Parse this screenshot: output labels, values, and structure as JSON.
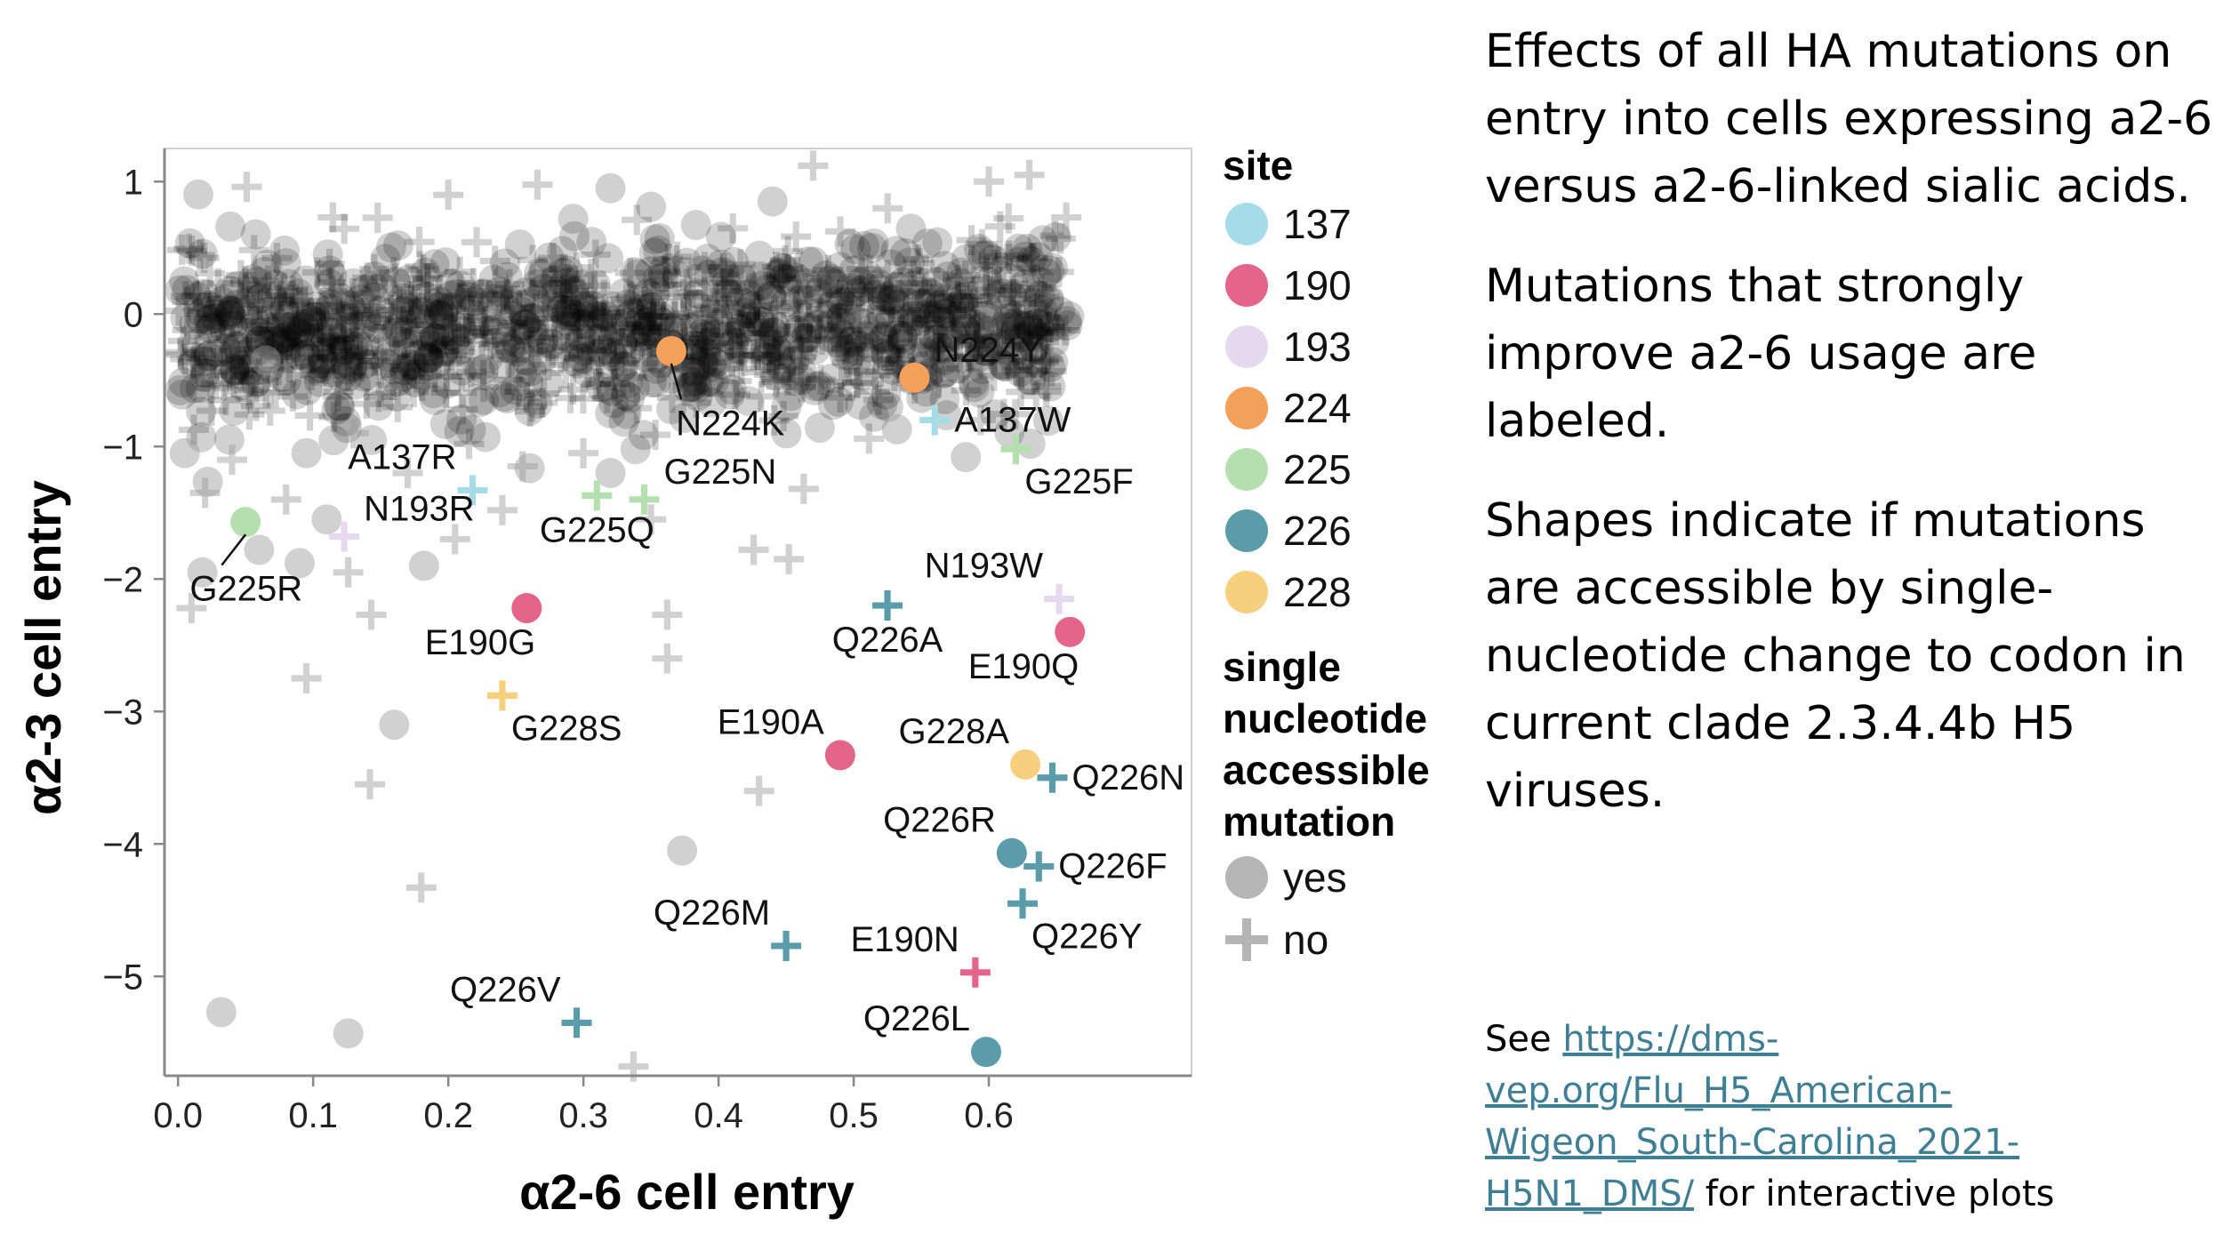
{
  "side_text": {
    "p1": "Effects of all HA mutations on entry into cells expressing a2-6 versus a2-6-linked sialic acids.",
    "p2": "Mutations that strongly improve a2-6 usage are labeled.",
    "p3": "Shapes indicate if mutations are accessible by single-nucleotide change to codon in current clade 2.3.4.4b H5 viruses."
  },
  "see_note": {
    "prefix": "See ",
    "link": "https://dms-vep.org/Flu_H5_American-Wigeon_South-Carolina_2021-H5N1_DMS/",
    "suffix": " for interactive plots"
  },
  "chart_data": {
    "type": "scatter",
    "xlabel": "α2-6 cell entry",
    "ylabel": "α2-3 cell entry",
    "xlim": [
      -0.01,
      0.75
    ],
    "ylim": [
      -5.75,
      1.25
    ],
    "x_ticks": [
      0.0,
      0.1,
      0.2,
      0.3,
      0.4,
      0.5,
      0.6
    ],
    "y_ticks": [
      1,
      0,
      -1,
      -2,
      -3,
      -4,
      -5
    ],
    "x_tick_labels": [
      "0.0",
      "0.1",
      "0.2",
      "0.3",
      "0.4",
      "0.5",
      "0.6"
    ],
    "y_tick_labels": [
      "1",
      "0",
      "−1",
      "−2",
      "−3",
      "−4",
      "−5"
    ],
    "legend": {
      "site_title": "site",
      "sites": [
        {
          "label": "137",
          "color": "#a6dbe8"
        },
        {
          "label": "190",
          "color": "#e4648a"
        },
        {
          "label": "193",
          "color": "#e6d8ee"
        },
        {
          "label": "224",
          "color": "#f4a05a"
        },
        {
          "label": "225",
          "color": "#b6dfb0"
        },
        {
          "label": "226",
          "color": "#5a9ca9"
        },
        {
          "label": "228",
          "color": "#f8cf7c"
        }
      ],
      "shape_title": [
        "single",
        "nucleotide",
        "accessible",
        "mutation"
      ],
      "shapes": [
        {
          "label": "yes",
          "shape": "circle",
          "color": "#b5b5b5"
        },
        {
          "label": "no",
          "shape": "cross",
          "color": "#b5b5b5"
        }
      ]
    },
    "labeled_points": [
      {
        "label": "N224K",
        "x": 0.365,
        "y": -0.28,
        "site": "224",
        "shape": "circle",
        "anchor": "leader",
        "lx": 0.375,
        "ly": -0.9
      },
      {
        "label": "N224Y",
        "x": 0.545,
        "y": -0.48,
        "site": "224",
        "shape": "circle",
        "anchor": "above-right"
      },
      {
        "label": "A137W",
        "x": 0.56,
        "y": -0.8,
        "site": "137",
        "shape": "cross",
        "anchor": "right"
      },
      {
        "label": "G225F",
        "x": 0.62,
        "y": -1.02,
        "site": "225",
        "shape": "cross",
        "anchor": "below-right"
      },
      {
        "label": "A137R",
        "x": 0.218,
        "y": -1.33,
        "site": "137",
        "shape": "cross",
        "anchor": "above-left"
      },
      {
        "label": "N193R",
        "x": 0.123,
        "y": -1.68,
        "site": "193",
        "shape": "cross",
        "anchor": "above-right"
      },
      {
        "label": "G225Q",
        "x": 0.31,
        "y": -1.37,
        "site": "225",
        "shape": "cross",
        "anchor": "below"
      },
      {
        "label": "G225N",
        "x": 0.345,
        "y": -1.4,
        "site": "225",
        "shape": "cross",
        "anchor": "above-right"
      },
      {
        "label": "G225R",
        "x": 0.05,
        "y": -1.57,
        "site": "225",
        "shape": "circle",
        "anchor": "leader",
        "lx": 0.035,
        "ly": -2.15
      },
      {
        "label": "N193W",
        "x": 0.652,
        "y": -2.15,
        "site": "193",
        "shape": "cross",
        "anchor": "above-left"
      },
      {
        "label": "E190Q",
        "x": 0.66,
        "y": -2.4,
        "site": "190",
        "shape": "circle",
        "anchor": "below-left"
      },
      {
        "label": "Q226A",
        "x": 0.525,
        "y": -2.2,
        "site": "226",
        "shape": "cross",
        "anchor": "below"
      },
      {
        "label": "E190G",
        "x": 0.258,
        "y": -2.22,
        "site": "190",
        "shape": "circle",
        "anchor": "below-left"
      },
      {
        "label": "G228S",
        "x": 0.24,
        "y": -2.88,
        "site": "228",
        "shape": "cross",
        "anchor": "below-right"
      },
      {
        "label": "E190A",
        "x": 0.49,
        "y": -3.33,
        "site": "190",
        "shape": "circle",
        "anchor": "above-left"
      },
      {
        "label": "G228A",
        "x": 0.627,
        "y": -3.4,
        "site": "228",
        "shape": "circle",
        "anchor": "above-left"
      },
      {
        "label": "Q226N",
        "x": 0.647,
        "y": -3.5,
        "site": "226",
        "shape": "cross",
        "anchor": "right"
      },
      {
        "label": "Q226R",
        "x": 0.617,
        "y": -4.07,
        "site": "226",
        "shape": "circle",
        "anchor": "above-left"
      },
      {
        "label": "Q226F",
        "x": 0.637,
        "y": -4.17,
        "site": "226",
        "shape": "cross",
        "anchor": "right"
      },
      {
        "label": "Q226Y",
        "x": 0.625,
        "y": -4.45,
        "site": "226",
        "shape": "cross",
        "anchor": "below-right"
      },
      {
        "label": "Q226M",
        "x": 0.45,
        "y": -4.77,
        "site": "226",
        "shape": "cross",
        "anchor": "above-left"
      },
      {
        "label": "E190N",
        "x": 0.59,
        "y": -4.97,
        "site": "190",
        "shape": "cross",
        "anchor": "above-left"
      },
      {
        "label": "Q226V",
        "x": 0.295,
        "y": -5.35,
        "site": "226",
        "shape": "cross",
        "anchor": "above-left"
      },
      {
        "label": "Q226L",
        "x": 0.598,
        "y": -5.57,
        "site": "226",
        "shape": "circle",
        "anchor": "above-left"
      }
    ],
    "other_points": [
      {
        "x": 0.005,
        "y": -1.05,
        "shape": "circle"
      },
      {
        "x": 0.018,
        "y": -1.95,
        "shape": "circle"
      },
      {
        "x": 0.06,
        "y": -1.78,
        "shape": "circle"
      },
      {
        "x": 0.095,
        "y": -1.05,
        "shape": "circle"
      },
      {
        "x": 0.09,
        "y": -1.88,
        "shape": "circle"
      },
      {
        "x": 0.16,
        "y": -3.1,
        "shape": "circle"
      },
      {
        "x": 0.182,
        "y": -1.9,
        "shape": "circle"
      },
      {
        "x": 0.32,
        "y": -1.2,
        "shape": "circle"
      },
      {
        "x": 0.373,
        "y": -4.05,
        "shape": "circle"
      },
      {
        "x": 0.532,
        "y": -0.87,
        "shape": "circle"
      },
      {
        "x": 0.583,
        "y": -1.08,
        "shape": "circle"
      },
      {
        "x": 0.032,
        "y": -5.27,
        "shape": "circle"
      },
      {
        "x": 0.126,
        "y": -5.43,
        "shape": "circle"
      },
      {
        "x": 0.01,
        "y": -2.22,
        "shape": "cross"
      },
      {
        "x": 0.095,
        "y": -2.75,
        "shape": "cross"
      },
      {
        "x": 0.142,
        "y": -3.55,
        "shape": "cross"
      },
      {
        "x": 0.143,
        "y": -2.27,
        "shape": "cross"
      },
      {
        "x": 0.18,
        "y": -4.33,
        "shape": "cross"
      },
      {
        "x": 0.362,
        "y": -2.27,
        "shape": "cross"
      },
      {
        "x": 0.362,
        "y": -2.6,
        "shape": "cross"
      },
      {
        "x": 0.426,
        "y": -1.78,
        "shape": "cross"
      },
      {
        "x": 0.452,
        "y": -1.85,
        "shape": "cross"
      },
      {
        "x": 0.43,
        "y": -3.6,
        "shape": "cross"
      },
      {
        "x": 0.337,
        "y": -5.68,
        "shape": "cross"
      },
      {
        "x": 0.463,
        "y": -1.32,
        "shape": "cross"
      },
      {
        "x": 0.47,
        "y": 1.12,
        "shape": "cross"
      },
      {
        "x": 0.126,
        "y": -1.95,
        "shape": "cross"
      },
      {
        "x": 0.205,
        "y": -1.7,
        "shape": "cross"
      },
      {
        "x": 0.24,
        "y": -1.48,
        "shape": "cross"
      },
      {
        "x": 0.35,
        "y": -1.55,
        "shape": "cross"
      },
      {
        "x": 0.02,
        "y": -1.35,
        "shape": "cross"
      },
      {
        "x": 0.04,
        "y": -1.1,
        "shape": "cross"
      },
      {
        "x": 0.08,
        "y": -1.4,
        "shape": "cross"
      },
      {
        "x": 0.13,
        "y": -0.9,
        "shape": "cross"
      },
      {
        "x": 0.17,
        "y": -1.2,
        "shape": "cross"
      },
      {
        "x": 0.255,
        "y": -1.15,
        "shape": "cross"
      },
      {
        "x": 0.3,
        "y": -1.05,
        "shape": "cross"
      },
      {
        "x": 0.6,
        "y": 1.0,
        "shape": "cross"
      },
      {
        "x": 0.63,
        "y": 1.05,
        "shape": "cross"
      },
      {
        "x": 0.2,
        "y": 0.9,
        "shape": "cross"
      },
      {
        "x": 0.32,
        "y": 0.95,
        "shape": "circle"
      },
      {
        "x": 0.44,
        "y": 0.85,
        "shape": "circle"
      },
      {
        "x": 0.065,
        "y": -0.35,
        "shape": "circle"
      },
      {
        "x": 0.11,
        "y": -1.55,
        "shape": "circle"
      }
    ],
    "cluster": {
      "count": 1400,
      "x_range": [
        0.0,
        0.66
      ],
      "y_mean": -0.12,
      "y_sd": 0.33,
      "shape": "mixed"
    }
  }
}
